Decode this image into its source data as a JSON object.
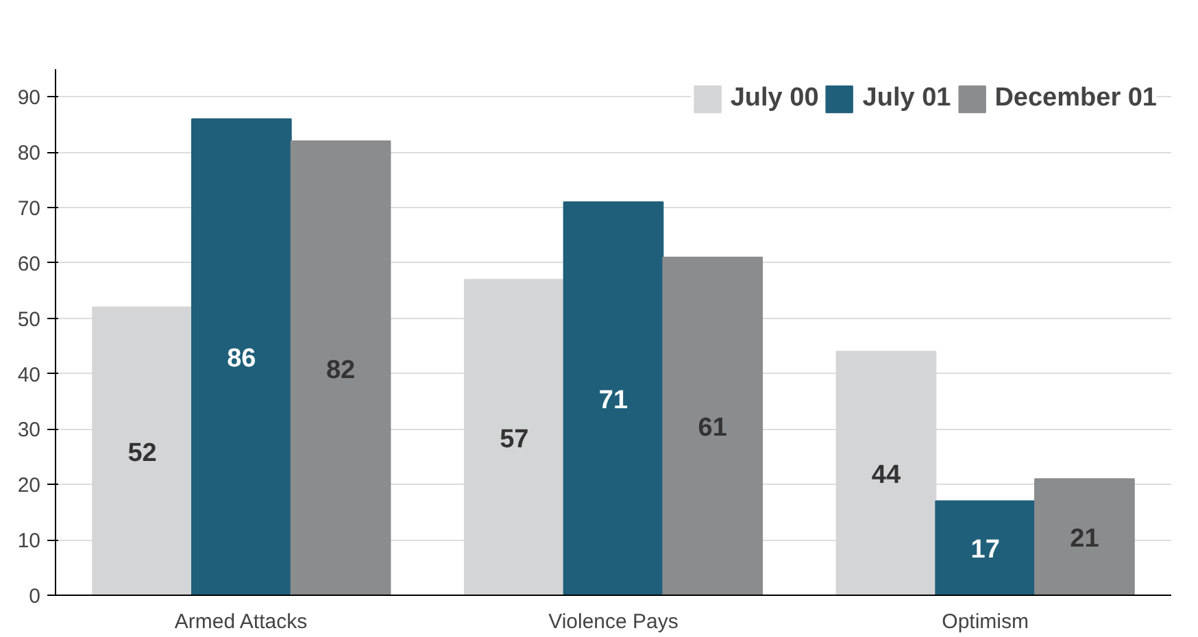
{
  "chart_data": {
    "type": "bar",
    "categories": [
      "Armed Attacks",
      "Violence Pays",
      "Optimism"
    ],
    "series": [
      {
        "name": "July 00",
        "color": "#d3d5d6",
        "values": [
          52,
          57,
          44
        ]
      },
      {
        "name": "July 01",
        "color": "#1f5f7a",
        "values": [
          86,
          71,
          17
        ]
      },
      {
        "name": "December 01",
        "color": "#8a8c8e",
        "values": [
          82,
          61,
          21
        ]
      }
    ],
    "ylim": [
      0,
      95
    ],
    "yticks": [
      0,
      10,
      20,
      30,
      40,
      50,
      60,
      70,
      80,
      90
    ],
    "grid": "y",
    "legend": "top right",
    "data_labels": true
  }
}
